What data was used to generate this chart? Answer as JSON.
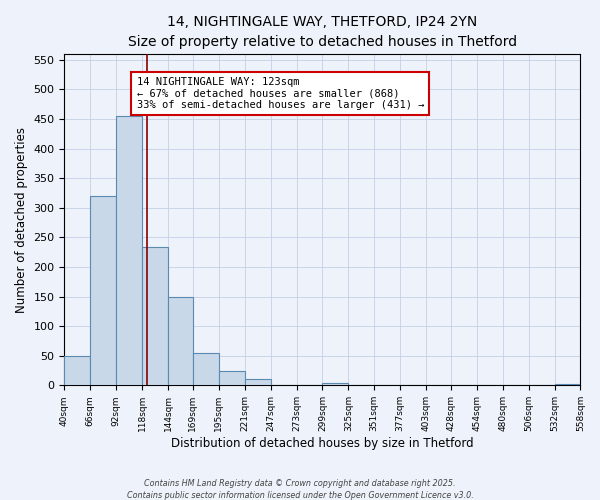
{
  "title": "14, NIGHTINGALE WAY, THETFORD, IP24 2YN",
  "subtitle": "Size of property relative to detached houses in Thetford",
  "xlabel": "Distribution of detached houses by size in Thetford",
  "ylabel": "Number of detached properties",
  "bar_edges": [
    40,
    66,
    92,
    118,
    144,
    169,
    195,
    221,
    247,
    273,
    299,
    325,
    351,
    377,
    403,
    428,
    454,
    480,
    506,
    532,
    558
  ],
  "bar_heights": [
    50,
    320,
    455,
    233,
    150,
    54,
    25,
    10,
    0,
    0,
    4,
    0,
    0,
    0,
    0,
    0,
    0,
    0,
    0,
    2
  ],
  "bar_color": "#c8d8e8",
  "bar_edge_color": "#5a8ab0",
  "property_line_x": 123,
  "property_line_color": "#8b0000",
  "annotation_line1": "14 NIGHTINGALE WAY: 123sqm",
  "annotation_line2": "← 67% of detached houses are smaller (868)",
  "annotation_line3": "33% of semi-detached houses are larger (431) →",
  "annotation_box_color": "#ffffff",
  "annotation_box_edge_color": "#cc0000",
  "ylim": [
    0,
    560
  ],
  "yticks": [
    0,
    50,
    100,
    150,
    200,
    250,
    300,
    350,
    400,
    450,
    500,
    550
  ],
  "xtick_labels": [
    "40sqm",
    "66sqm",
    "92sqm",
    "118sqm",
    "144sqm",
    "169sqm",
    "195sqm",
    "221sqm",
    "247sqm",
    "273sqm",
    "299sqm",
    "325sqm",
    "351sqm",
    "377sqm",
    "403sqm",
    "428sqm",
    "454sqm",
    "480sqm",
    "506sqm",
    "532sqm",
    "558sqm"
  ],
  "footer_line1": "Contains HM Land Registry data © Crown copyright and database right 2025.",
  "footer_line2": "Contains public sector information licensed under the Open Government Licence v3.0.",
  "background_color": "#eef2fa",
  "grid_color": "#c5d0e8",
  "annotation_fontsize": 7.5,
  "title_fontsize": 10,
  "subtitle_fontsize": 9
}
